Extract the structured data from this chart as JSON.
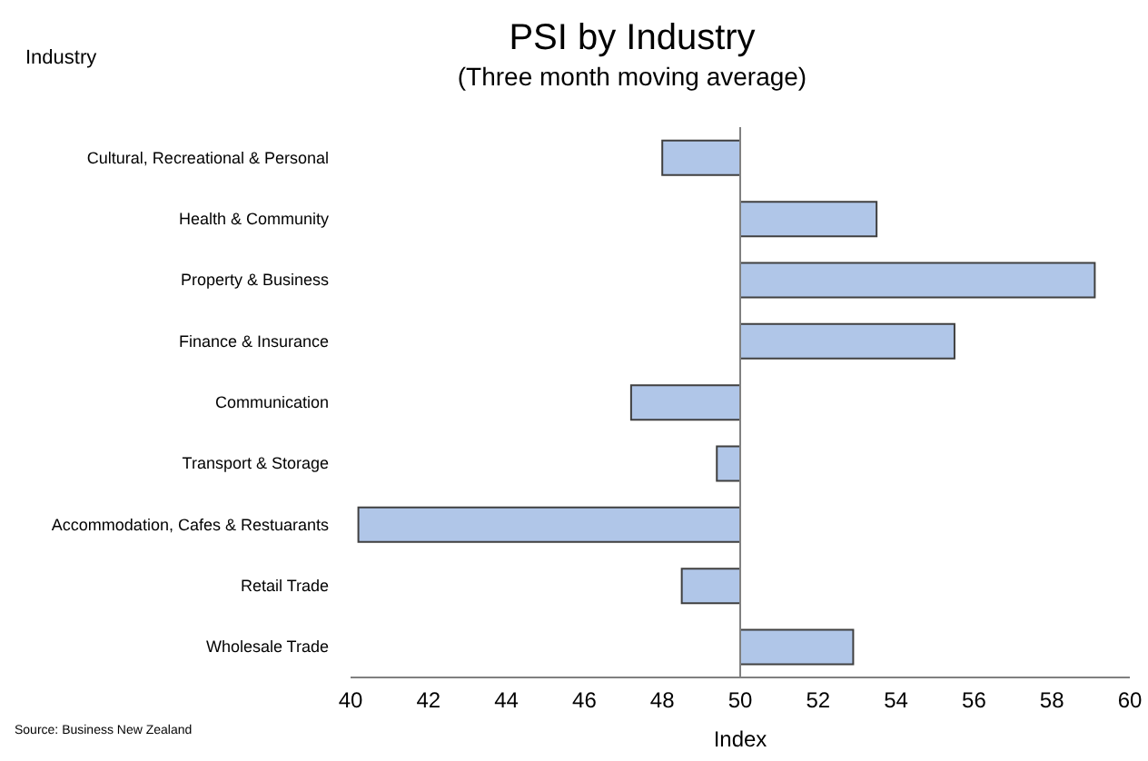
{
  "chart_data": {
    "type": "bar",
    "orientation": "horizontal",
    "title": "PSI by Industry",
    "subtitle": "(Three month moving average)",
    "ylabel": "Industry",
    "xlabel": "Index",
    "categories": [
      "Cultural, Recreational & Personal",
      "Health & Community",
      "Property & Business",
      "Finance & Insurance",
      "Communication",
      "Transport & Storage",
      "Accommodation, Cafes & Restuarants",
      "Retail Trade",
      "Wholesale Trade"
    ],
    "base": [
      50,
      50,
      50,
      50,
      50,
      50,
      50,
      50,
      50
    ],
    "values": [
      -2.0,
      3.5,
      9.1,
      5.5,
      -2.8,
      -0.6,
      -9.8,
      -1.5,
      2.9
    ],
    "color": "#b0c6e8",
    "xlim": [
      40,
      60
    ],
    "xticks": [
      40,
      42,
      44,
      46,
      48,
      50,
      52,
      54,
      56,
      58,
      60
    ],
    "ref_lines": [
      {
        "axis": "x",
        "value": 50,
        "color": "#808080"
      }
    ],
    "grid": false,
    "annotations": [
      "Source: Business New Zealand"
    ]
  }
}
